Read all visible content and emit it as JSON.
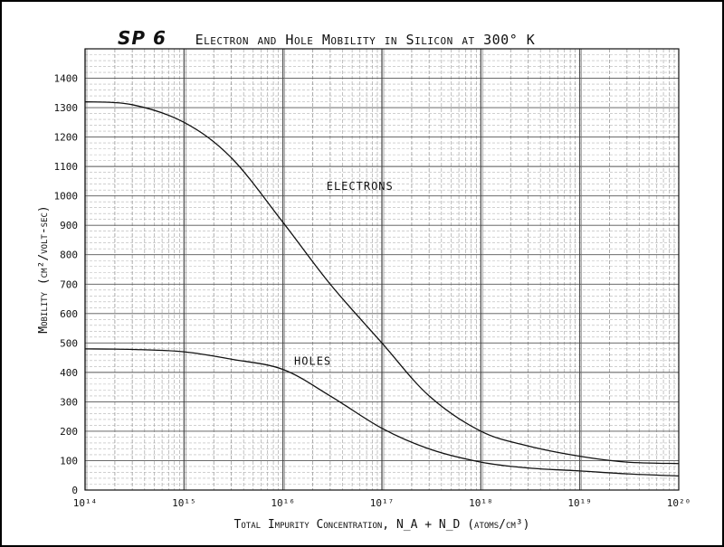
{
  "chart_id": "SP 6",
  "chart_data": {
    "type": "line",
    "title": "Electron and Hole Mobility in Silicon at 300° K",
    "xlabel": "Total Impurity Concentration, N_A + N_D (atoms/cm³)",
    "ylabel": "Mobility (cm²/volt-sec)",
    "x_scale": "log",
    "xlim": [
      100000000000000.0,
      1e+20
    ],
    "ylim": [
      0,
      1500
    ],
    "x_tick_labels": [
      "10¹⁴",
      "10¹⁵",
      "10¹⁶",
      "10¹⁷",
      "10¹⁸",
      "10¹⁹",
      "10²⁰"
    ],
    "y_ticks": [
      0,
      100,
      200,
      300,
      400,
      500,
      600,
      700,
      800,
      900,
      1000,
      1100,
      1200,
      1300,
      1400
    ],
    "grid": true,
    "series": [
      {
        "name": "Electrons",
        "x": [
          100000000000000.0,
          300000000000000.0,
          1000000000000000.0,
          3000000000000000.0,
          1e+16,
          3e+16,
          1e+17,
          3e+17,
          1e+18,
          3e+18,
          1e+19,
          3e+19,
          1e+20
        ],
        "y": [
          1320,
          1310,
          1250,
          1130,
          910,
          700,
          500,
          320,
          200,
          150,
          115,
          95,
          90
        ]
      },
      {
        "name": "Holes",
        "x": [
          100000000000000.0,
          300000000000000.0,
          1000000000000000.0,
          3000000000000000.0,
          1e+16,
          3e+16,
          1e+17,
          3e+17,
          1e+18,
          3e+18,
          1e+19,
          3e+19,
          1e+20
        ],
        "y": [
          480,
          478,
          470,
          445,
          410,
          320,
          210,
          140,
          95,
          75,
          65,
          55,
          48
        ]
      }
    ],
    "annotations": [
      {
        "text": "ELECTRONS",
        "x": 6e+16,
        "y": 1020
      },
      {
        "text": "HOLES",
        "x": 2e+16,
        "y": 425
      }
    ]
  }
}
